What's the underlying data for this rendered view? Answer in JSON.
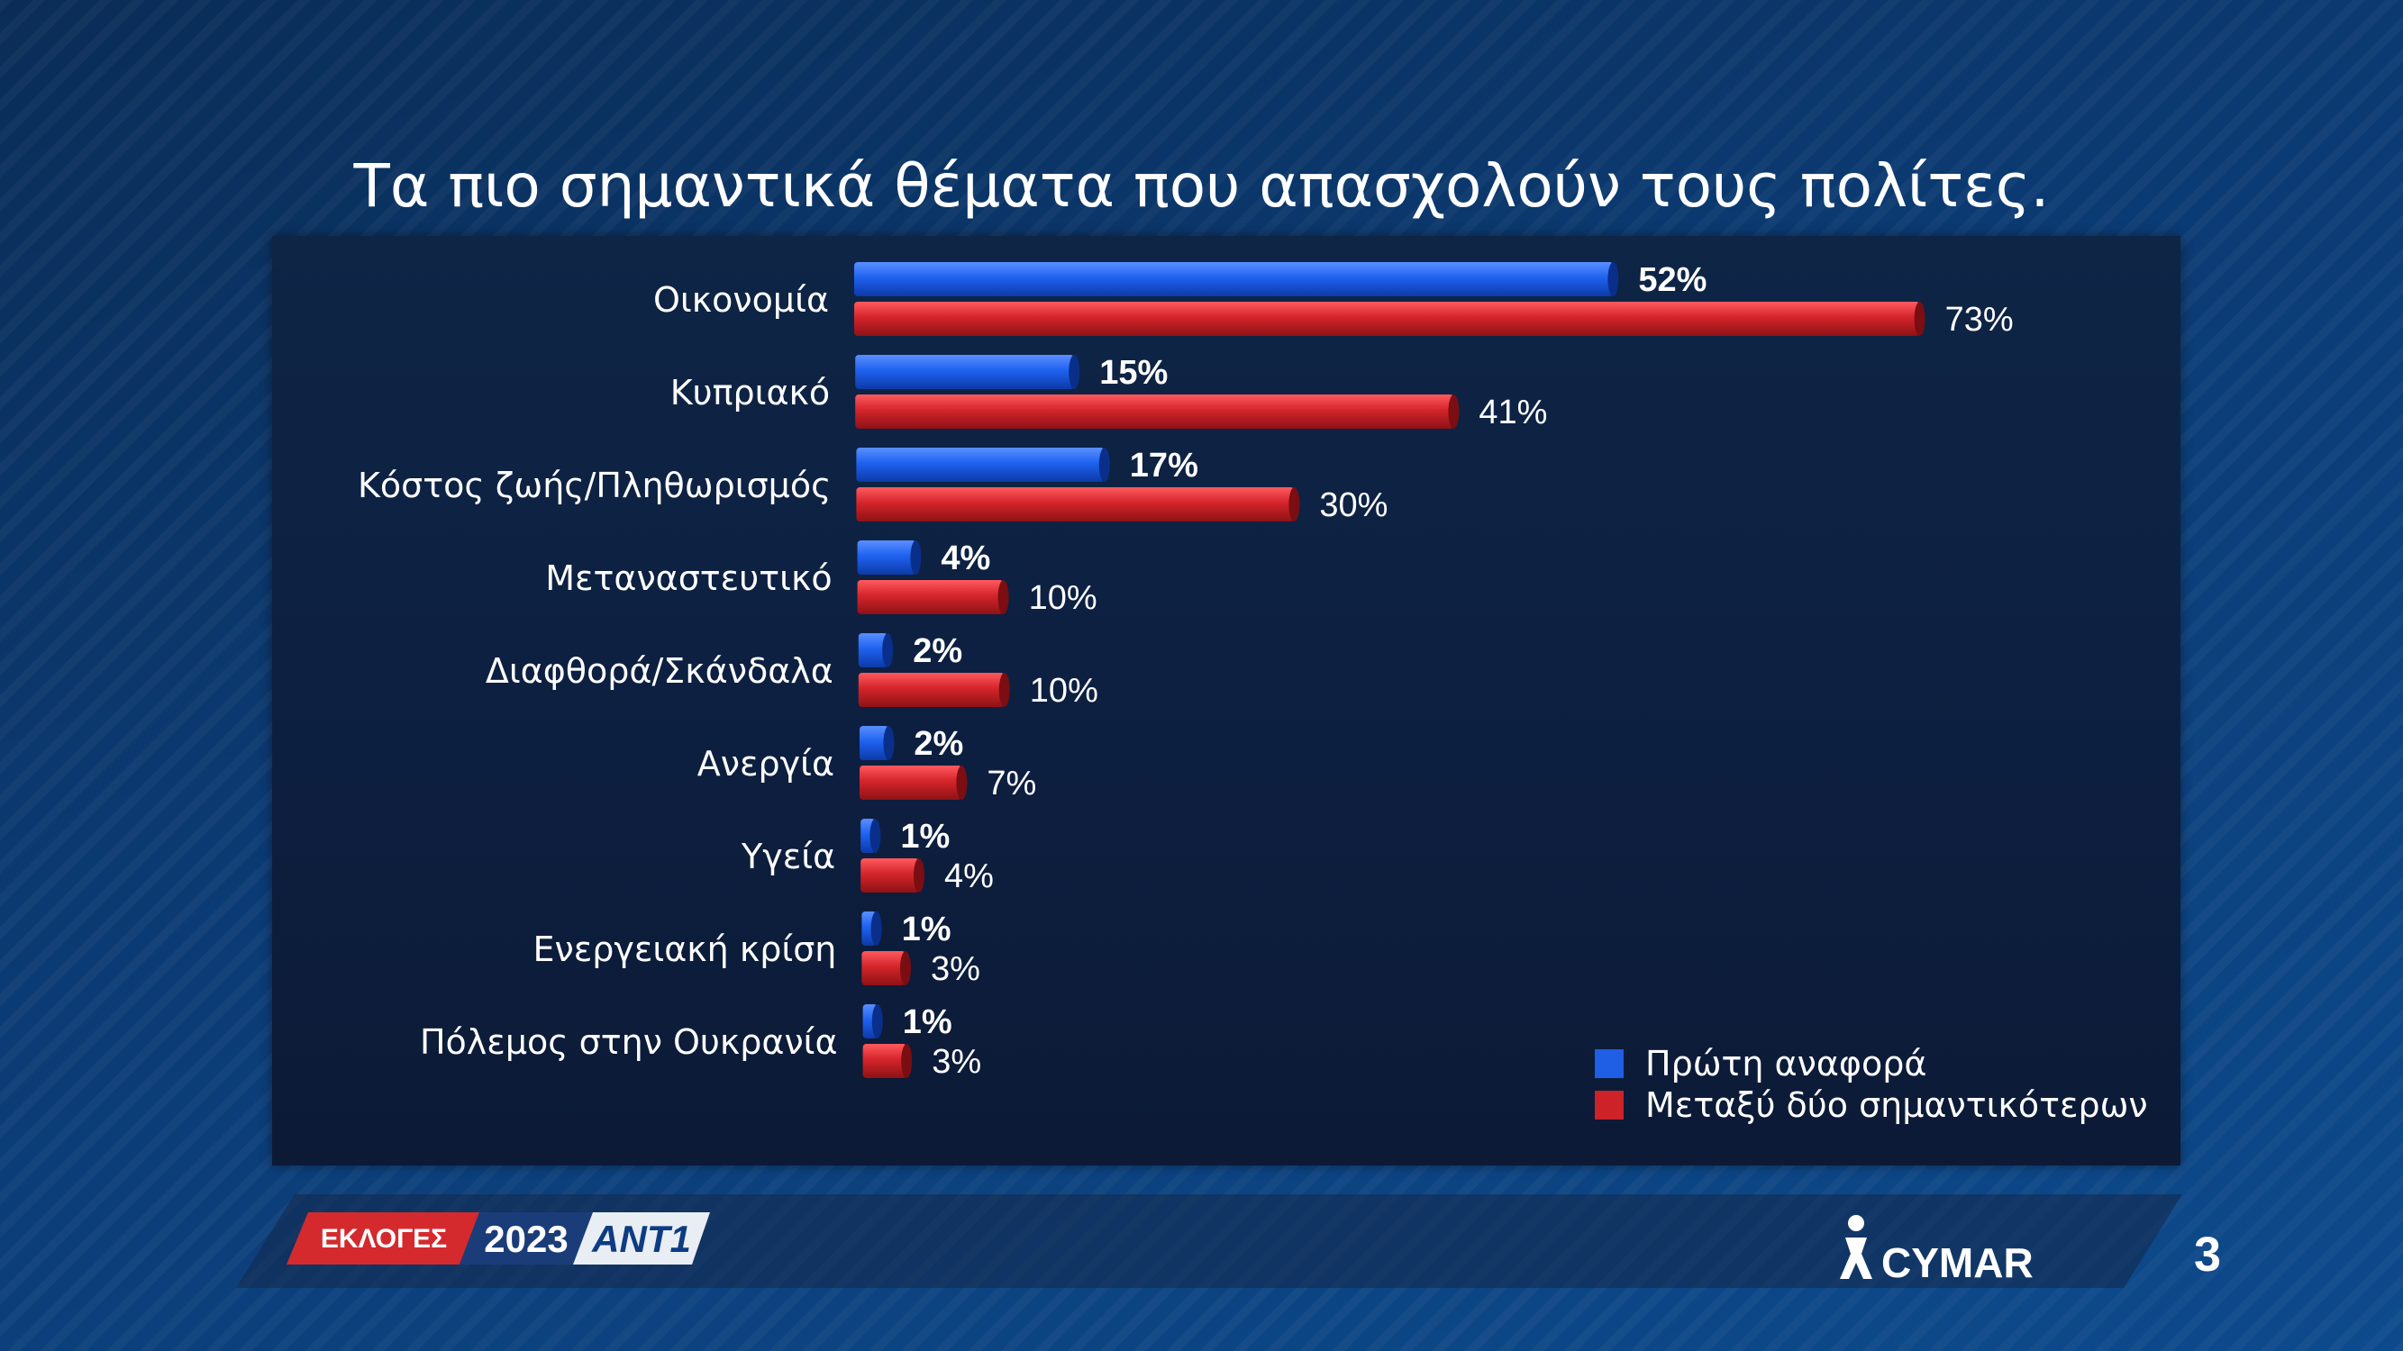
{
  "title": "Τα πιο σημαντικά θέματα που απασχολούν τους πολίτες.",
  "chart_data": {
    "type": "bar",
    "orientation": "horizontal",
    "categories": [
      "Οικονομία",
      "Κυπριακό",
      "Κόστος ζωής/Πληθωρισμός",
      "Μεταναστευτικό",
      "Διαφθορά/Σκάνδαλα",
      "Ανεργία",
      "Υγεία",
      "Ενεργειακή κρίση",
      "Πόλεμος στην Ουκρανία"
    ],
    "series": [
      {
        "name": "Πρώτη αναφορά",
        "color": "#1e5fe6",
        "values": [
          52,
          15,
          17,
          4,
          2,
          2,
          1,
          1,
          1
        ],
        "labels": [
          "52%",
          "15%",
          "17%",
          "4%",
          "2%",
          "2%",
          "1%",
          "1%",
          "1%"
        ]
      },
      {
        "name": "Μεταξύ δύο σημαντικότερων",
        "color": "#cc2228",
        "values": [
          73,
          41,
          30,
          10,
          10,
          7,
          4,
          3,
          3
        ],
        "labels": [
          "73%",
          "41%",
          "30%",
          "10%",
          "10%",
          "7%",
          "4%",
          "3%",
          "3%"
        ]
      }
    ],
    "legend_position": "bottom-right",
    "grid": false,
    "xlim": [
      0,
      80
    ]
  },
  "footer": {
    "logo_elections": "ΕΚΛΟΓΕΣ",
    "logo_year": "2023",
    "logo_channel": "ANT1",
    "logo_pollster": "CYMAR",
    "page_number": "3"
  }
}
